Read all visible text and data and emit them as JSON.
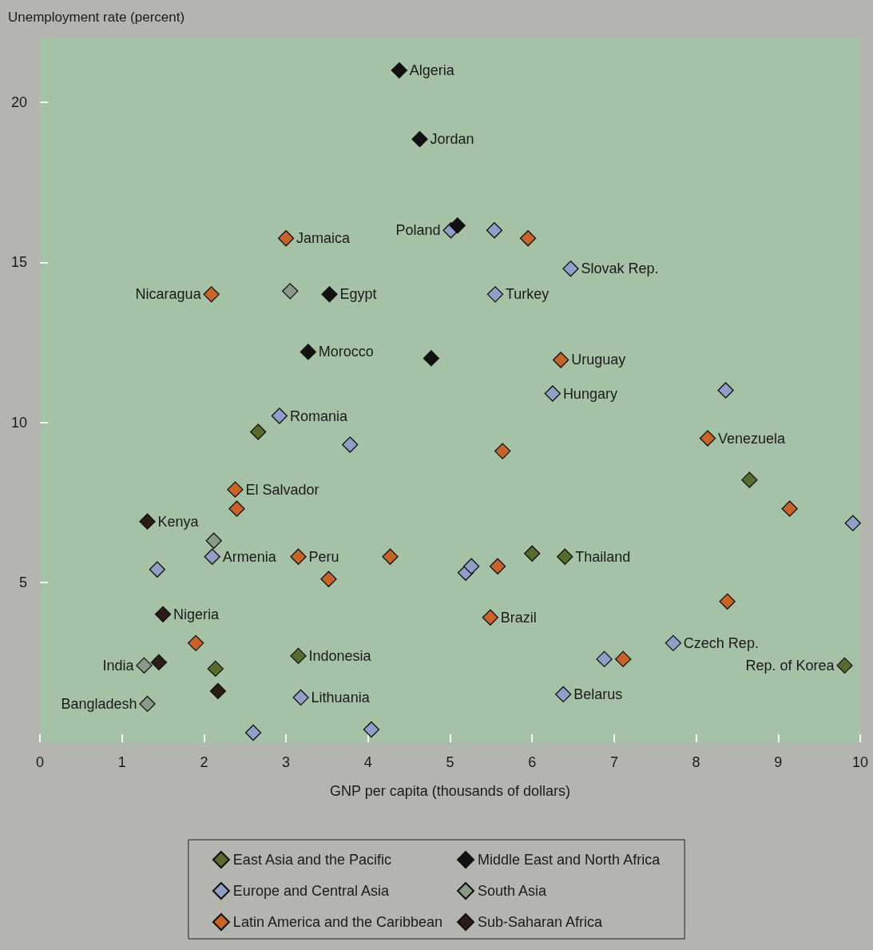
{
  "chart_data": {
    "type": "scatter",
    "xlabel": "GNP per capita (thousands of dollars)",
    "ylabel": "Unemployment rate (percent)",
    "xlim": [
      0,
      10
    ],
    "ylim": [
      0,
      22
    ],
    "xticks": [
      0,
      1,
      2,
      3,
      4,
      5,
      6,
      7,
      8,
      9,
      10
    ],
    "yticks": [
      5,
      10,
      15,
      20
    ],
    "grid": false,
    "legend": "bottom",
    "marker": "diamond",
    "series": [
      {
        "name": "East Asia and the Pacific",
        "color": "#5a6b2e",
        "x": [
          2.66,
          8.65,
          6.0,
          6.4,
          2.14,
          3.15,
          9.81
        ],
        "values": [
          9.7,
          8.2,
          5.9,
          5.8,
          2.3,
          2.7,
          2.4
        ]
      },
      {
        "name": "Europe and Central Asia",
        "color": "#8f9fc8",
        "x": [
          2.92,
          3.78,
          2.1,
          1.43,
          5.01,
          5.54,
          6.47,
          5.55,
          6.25,
          8.36,
          9.91,
          5.19,
          5.26,
          7.72,
          6.88,
          6.38,
          3.18,
          2.6,
          4.04
        ],
        "values": [
          10.2,
          9.3,
          5.8,
          5.4,
          16.0,
          16.0,
          14.8,
          14.0,
          10.9,
          11.0,
          6.85,
          5.3,
          5.5,
          3.1,
          2.6,
          1.5,
          1.4,
          0.3,
          0.4
        ]
      },
      {
        "name": "Latin America and the Caribbean",
        "color": "#c8642a",
        "x": [
          3.0,
          2.09,
          5.95,
          6.35,
          8.14,
          5.64,
          2.38,
          2.4,
          3.15,
          4.27,
          3.52,
          5.58,
          5.49,
          8.38,
          9.14,
          1.9,
          7.11
        ],
        "values": [
          15.75,
          14.0,
          15.75,
          11.95,
          9.5,
          9.1,
          7.9,
          7.3,
          5.8,
          5.8,
          5.1,
          5.5,
          3.9,
          4.4,
          7.3,
          3.1,
          2.6
        ]
      },
      {
        "name": "Middle East and North Africa",
        "color": "#111111",
        "x": [
          4.38,
          4.63,
          5.09,
          3.53,
          3.27,
          4.77
        ],
        "values": [
          21.0,
          18.85,
          16.15,
          14.0,
          12.2,
          12.0
        ]
      },
      {
        "name": "South Asia",
        "color": "#8a9a88",
        "x": [
          3.05,
          2.12,
          1.27,
          1.31
        ],
        "values": [
          14.1,
          6.3,
          2.4,
          1.2
        ]
      },
      {
        "name": "Sub-Saharan Africa",
        "color": "#2b1c16",
        "x": [
          1.31,
          1.5,
          1.45,
          2.17
        ],
        "values": [
          6.9,
          4.0,
          2.5,
          1.6
        ]
      }
    ],
    "annotations": [
      {
        "text": "Algeria",
        "x": 4.38,
        "y": 21.0
      },
      {
        "text": "Jordan",
        "x": 4.63,
        "y": 18.85
      },
      {
        "text": "Poland",
        "x": 5.01,
        "y": 16.0
      },
      {
        "text": "Jamaica",
        "x": 3.0,
        "y": 15.75
      },
      {
        "text": "Slovak Rep.",
        "x": 6.47,
        "y": 14.8
      },
      {
        "text": "Nicaragua",
        "x": 2.09,
        "y": 14.0
      },
      {
        "text": "Egypt",
        "x": 3.53,
        "y": 14.0
      },
      {
        "text": "Turkey",
        "x": 5.55,
        "y": 14.0
      },
      {
        "text": "Morocco",
        "x": 3.27,
        "y": 12.2
      },
      {
        "text": "Uruguay",
        "x": 6.35,
        "y": 11.95
      },
      {
        "text": "Hungary",
        "x": 6.25,
        "y": 10.9
      },
      {
        "text": "Romania",
        "x": 2.92,
        "y": 10.2
      },
      {
        "text": "Venezuela",
        "x": 8.14,
        "y": 9.5
      },
      {
        "text": "El Salvador",
        "x": 2.38,
        "y": 7.9
      },
      {
        "text": "Kenya",
        "x": 1.31,
        "y": 6.9
      },
      {
        "text": "Peru",
        "x": 3.15,
        "y": 5.8
      },
      {
        "text": "Armenia",
        "x": 2.1,
        "y": 5.8
      },
      {
        "text": "Thailand",
        "x": 6.4,
        "y": 5.8
      },
      {
        "text": "Nigeria",
        "x": 1.5,
        "y": 4.0
      },
      {
        "text": "Brazil",
        "x": 5.49,
        "y": 3.9
      },
      {
        "text": "Czech Rep.",
        "x": 7.72,
        "y": 3.1
      },
      {
        "text": "India",
        "x": 1.27,
        "y": 2.4
      },
      {
        "text": "Indonesia",
        "x": 3.15,
        "y": 2.7
      },
      {
        "text": "Rep. of Korea",
        "x": 9.81,
        "y": 2.4
      },
      {
        "text": "Bangladesh",
        "x": 1.31,
        "y": 1.2
      },
      {
        "text": "Lithuania",
        "x": 3.18,
        "y": 1.4
      },
      {
        "text": "Belarus",
        "x": 6.38,
        "y": 1.5
      }
    ]
  }
}
